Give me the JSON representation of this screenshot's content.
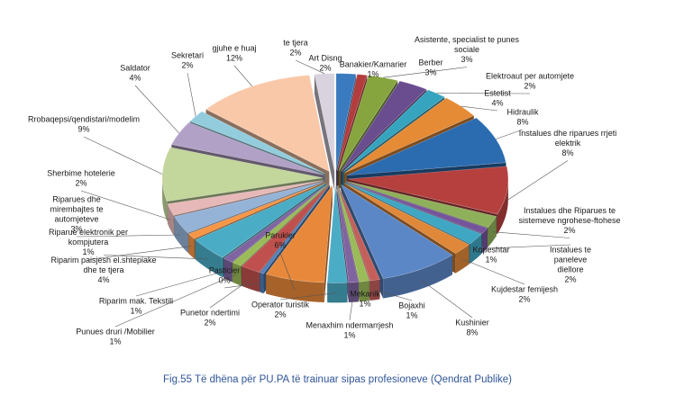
{
  "chart_data": {
    "type": "pie",
    "title": "",
    "exploded": true,
    "three_d": true,
    "slices": [
      {
        "name": "Art Disng",
        "pct": "2%",
        "value": 2,
        "color": "#3a7abf"
      },
      {
        "name": "Banakier/Kamarier",
        "pct": "1%",
        "value": 1,
        "color": "#b33c3c"
      },
      {
        "name": "Asistente, specialist te punes sociale",
        "pct": "3%",
        "value": 3,
        "color": "#87a53f"
      },
      {
        "name": "Berber",
        "pct": "3%",
        "value": 3,
        "color": "#6a4d8f"
      },
      {
        "name": "Elektroaut per automjete",
        "pct": "2%",
        "value": 2,
        "color": "#36a4bf"
      },
      {
        "name": "Estetist",
        "pct": "4%",
        "value": 4,
        "color": "#e58a35"
      },
      {
        "name": "Hidraulik",
        "pct": "8%",
        "value": 8,
        "color": "#2b6bb0"
      },
      {
        "name": "Instalues dhe riparues rrjeti elektrik",
        "pct": "8%",
        "value": 8,
        "color": "#b5403d"
      },
      {
        "name": "Instalues dhe Riparues te sistemeve ngrohese-ftohese",
        "pct": "2%",
        "value": 2,
        "color": "#8fb05a"
      },
      {
        "name": "Kopeshtar",
        "pct": "1%",
        "value": 1,
        "color": "#75549c"
      },
      {
        "name": "Instalues te paneleve diellore",
        "pct": "2%",
        "value": 2,
        "color": "#3fa7c3"
      },
      {
        "name": "Kujdestar femijesh",
        "pct": "2%",
        "value": 2,
        "color": "#e0883a"
      },
      {
        "name": "Kushinier",
        "pct": "8%",
        "value": 8,
        "color": "#5b87c7"
      },
      {
        "name": "Bojaxhi",
        "pct": "1%",
        "value": 1,
        "color": "#c45f5b"
      },
      {
        "name": "Mekanik",
        "pct": "1%",
        "value": 1,
        "color": "#9bbb59"
      },
      {
        "name": "Menaxhim ndermarrjesh",
        "pct": "1%",
        "value": 1,
        "color": "#8064a2"
      },
      {
        "name": "Operator turistik",
        "pct": "2%",
        "value": 2,
        "color": "#4bacc6"
      },
      {
        "name": "Parukier",
        "pct": "6%",
        "value": 6,
        "color": "#e8883a"
      },
      {
        "name": "Pasticier",
        "pct": "0%",
        "value": 0.4,
        "color": "#4f81bd"
      },
      {
        "name": "Punetor ndertimi",
        "pct": "2%",
        "value": 2,
        "color": "#c0504d"
      },
      {
        "name": "Punues druri /Mobilier",
        "pct": "1%",
        "value": 1,
        "color": "#9bbb59"
      },
      {
        "name": "Riparim mak. Tekstili",
        "pct": "1%",
        "value": 1,
        "color": "#8064a2"
      },
      {
        "name": "Riparim paisjesh el.shtepiake dhe te tjera",
        "pct": "4%",
        "value": 4,
        "color": "#4bacc6"
      },
      {
        "name": "Riparue elektronik per kompjutera",
        "pct": "1%",
        "value": 1,
        "color": "#f79646"
      },
      {
        "name": "Riparues dhe mirembajtes te automjeteve",
        "pct": "3%",
        "value": 3,
        "color": "#95b3d7"
      },
      {
        "name": "Sherbime hotelerie",
        "pct": "2%",
        "value": 2,
        "color": "#e6b9b8"
      },
      {
        "name": "Rrobaqepsi/qendistari/modelim",
        "pct": "9%",
        "value": 9,
        "color": "#c3d69b"
      },
      {
        "name": "Saldator",
        "pct": "4%",
        "value": 4,
        "color": "#b2a1c7"
      },
      {
        "name": "Sekretari",
        "pct": "2%",
        "value": 2,
        "color": "#93cddd"
      },
      {
        "name": "gjuhe e huaj",
        "pct": "12%",
        "value": 12,
        "color": "#f9c8a8"
      },
      {
        "name": "te tjera",
        "pct": "2%",
        "value": 2,
        "color": "#d9d3df"
      }
    ]
  },
  "labels": [
    {
      "lines": [
        "Art Disng",
        "2%"
      ]
    },
    {
      "lines": [
        "Banakier/Kamarier",
        "1%"
      ]
    },
    {
      "lines": [
        "Asistente, specialist te punes",
        "sociale",
        "3%"
      ]
    },
    {
      "lines": [
        "Berber",
        "3%"
      ]
    },
    {
      "lines": [
        "Elektroaut per automjete",
        "2%"
      ]
    },
    {
      "lines": [
        "Estetist",
        "4%"
      ]
    },
    {
      "lines": [
        "Hidraulik",
        "8%"
      ]
    },
    {
      "lines": [
        "Instalues dhe riparues rrjeti",
        "elektrik",
        "8%"
      ]
    },
    {
      "lines": [
        "Instalues dhe Riparues te",
        "sistemeve ngrohese-ftohese",
        "2%"
      ]
    },
    {
      "lines": [
        "Kopeshtar",
        "1%"
      ]
    },
    {
      "lines": [
        "Instalues te",
        "paneleve",
        "diellore",
        "2%"
      ]
    },
    {
      "lines": [
        "Kujdestar femijesh",
        "2%"
      ]
    },
    {
      "lines": [
        "Kushinier",
        "8%"
      ]
    },
    {
      "lines": [
        "Bojaxhi",
        "1%"
      ]
    },
    {
      "lines": [
        "Mekanik",
        "1%"
      ]
    },
    {
      "lines": [
        "Menaxhim ndermarrjesh",
        "1%"
      ]
    },
    {
      "lines": [
        "Operator turistik",
        "2%"
      ]
    },
    {
      "lines": [
        "Parukier",
        "6%"
      ]
    },
    {
      "lines": [
        "Pasticier",
        "0%"
      ]
    },
    {
      "lines": [
        "Punetor ndertimi",
        "2%"
      ]
    },
    {
      "lines": [
        "Punues druri /Mobilier",
        "1%"
      ]
    },
    {
      "lines": [
        "Riparim mak. Tekstili",
        "1%"
      ]
    },
    {
      "lines": [
        "Riparim paisjesh el.shtepiake",
        "dhe te tjera",
        "4%"
      ]
    },
    {
      "lines": [
        "Riparue elektronik per",
        "kompjutera",
        "1%"
      ]
    },
    {
      "lines": [
        "Riparues dhe",
        "mirembajtes te",
        "automjeteve",
        "3%"
      ]
    },
    {
      "lines": [
        "Sherbime hotelerie",
        "2%"
      ]
    },
    {
      "lines": [
        "Rrobaqepsi/qendistari/modelim",
        "9%"
      ]
    },
    {
      "lines": [
        "Saldator",
        "4%"
      ]
    },
    {
      "lines": [
        "Sekretari",
        "2%"
      ]
    },
    {
      "lines": [
        "gjuhe e huaj",
        "12%"
      ]
    },
    {
      "lines": [
        "te tjera",
        "2%"
      ]
    }
  ],
  "caption": "Fig.55 Të dhëna për PU.PA të trainuar sipas profesioneve (Qendrat Publike)"
}
